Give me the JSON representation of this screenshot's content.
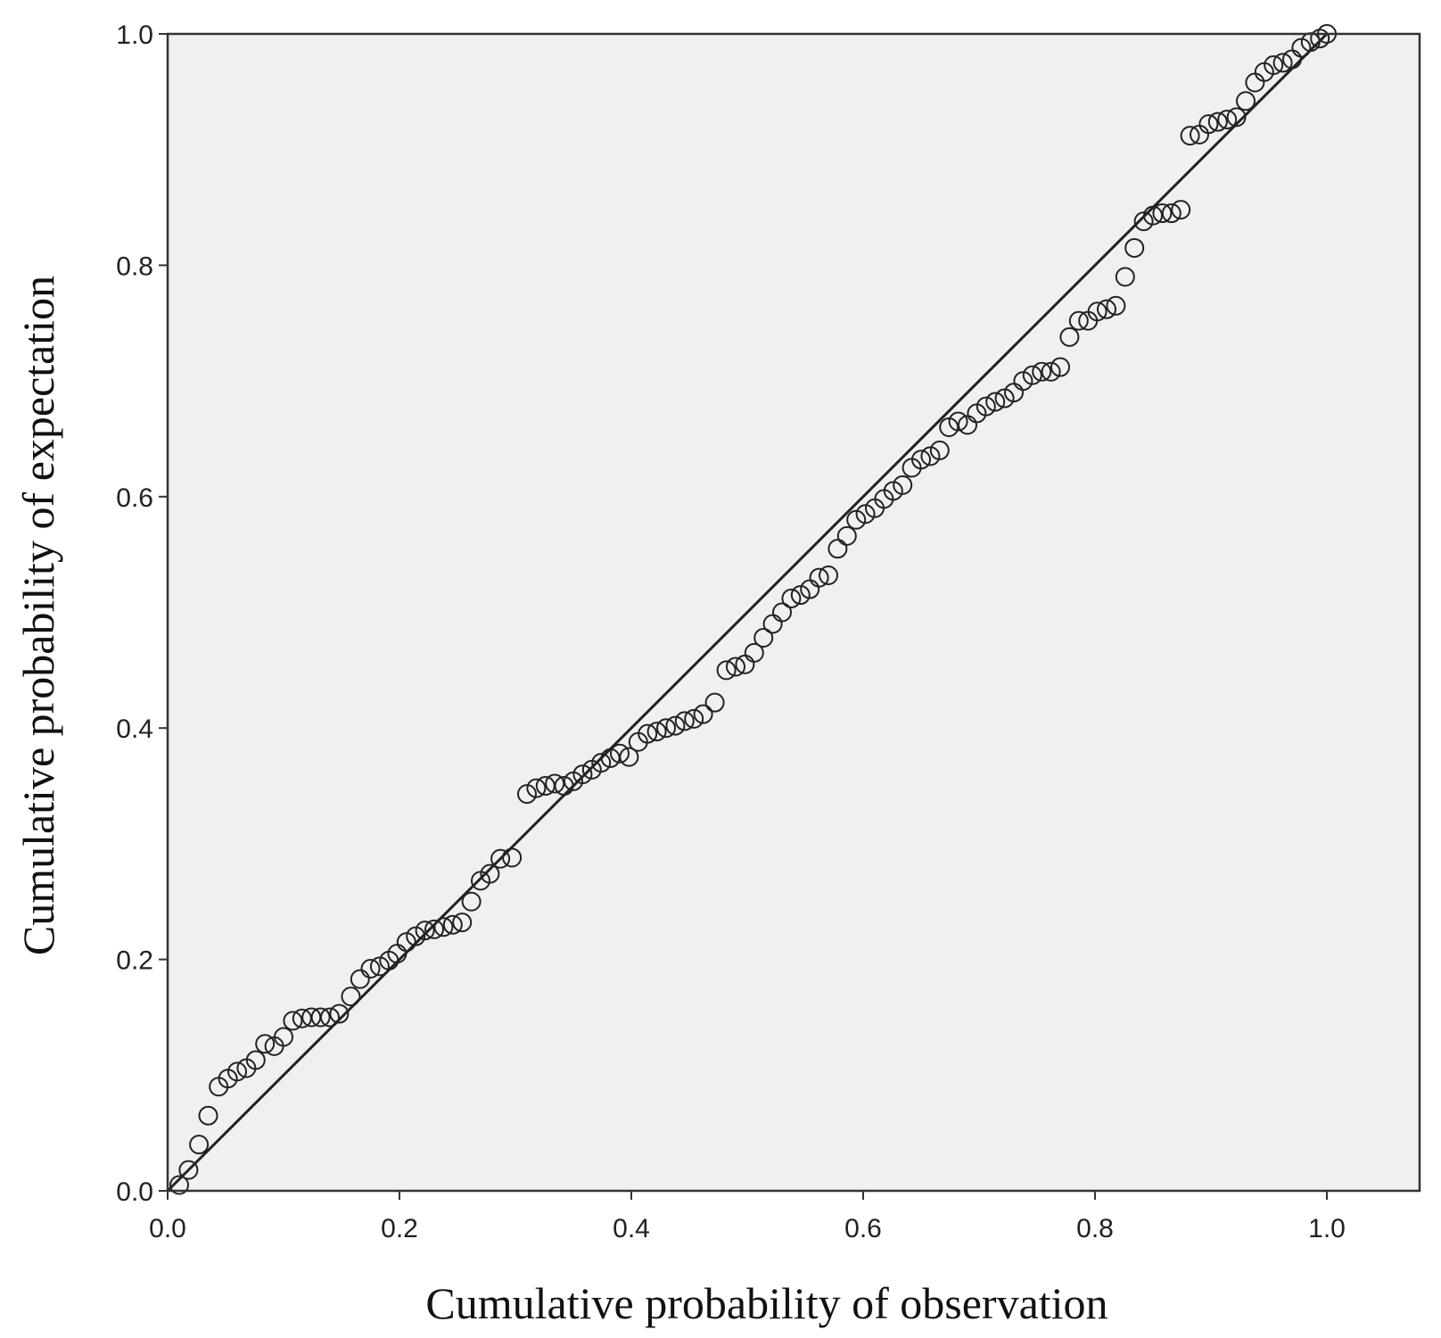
{
  "chart_data": {
    "type": "scatter",
    "xlabel": "Cumulative probability of observation",
    "ylabel": "Cumulative probability of expectation",
    "xlim": [
      0.0,
      1.08
    ],
    "ylim": [
      0.0,
      1.0
    ],
    "x_ticks": [
      "0.0",
      "0.2",
      "0.4",
      "0.6",
      "0.8",
      "1.0"
    ],
    "y_ticks": [
      "0.0",
      "0.2",
      "0.4",
      "0.6",
      "0.8",
      "1.0"
    ],
    "grid": false,
    "plot_background": "#f0f0f0",
    "marker": "open-circle",
    "reference_line": {
      "from": [
        0.0,
        0.0
      ],
      "to": [
        1.0,
        1.0
      ]
    },
    "points": [
      [
        0.01,
        0.005
      ],
      [
        0.018,
        0.018
      ],
      [
        0.027,
        0.04
      ],
      [
        0.035,
        0.065
      ],
      [
        0.044,
        0.09
      ],
      [
        0.052,
        0.097
      ],
      [
        0.06,
        0.103
      ],
      [
        0.068,
        0.106
      ],
      [
        0.076,
        0.113
      ],
      [
        0.084,
        0.127
      ],
      [
        0.092,
        0.125
      ],
      [
        0.1,
        0.133
      ],
      [
        0.108,
        0.147
      ],
      [
        0.116,
        0.149
      ],
      [
        0.124,
        0.15
      ],
      [
        0.132,
        0.15
      ],
      [
        0.14,
        0.15
      ],
      [
        0.148,
        0.153
      ],
      [
        0.158,
        0.168
      ],
      [
        0.166,
        0.183
      ],
      [
        0.175,
        0.192
      ],
      [
        0.183,
        0.194
      ],
      [
        0.191,
        0.199
      ],
      [
        0.198,
        0.205
      ],
      [
        0.206,
        0.215
      ],
      [
        0.214,
        0.22
      ],
      [
        0.222,
        0.225
      ],
      [
        0.23,
        0.226
      ],
      [
        0.238,
        0.228
      ],
      [
        0.246,
        0.23
      ],
      [
        0.254,
        0.232
      ],
      [
        0.262,
        0.25
      ],
      [
        0.27,
        0.268
      ],
      [
        0.278,
        0.274
      ],
      [
        0.287,
        0.287
      ],
      [
        0.297,
        0.288
      ],
      [
        0.31,
        0.343
      ],
      [
        0.318,
        0.348
      ],
      [
        0.326,
        0.35
      ],
      [
        0.334,
        0.352
      ],
      [
        0.342,
        0.35
      ],
      [
        0.35,
        0.354
      ],
      [
        0.358,
        0.36
      ],
      [
        0.366,
        0.364
      ],
      [
        0.374,
        0.37
      ],
      [
        0.382,
        0.374
      ],
      [
        0.39,
        0.378
      ],
      [
        0.398,
        0.375
      ],
      [
        0.406,
        0.388
      ],
      [
        0.414,
        0.395
      ],
      [
        0.422,
        0.397
      ],
      [
        0.43,
        0.4
      ],
      [
        0.438,
        0.402
      ],
      [
        0.446,
        0.406
      ],
      [
        0.454,
        0.408
      ],
      [
        0.462,
        0.412
      ],
      [
        0.472,
        0.422
      ],
      [
        0.482,
        0.45
      ],
      [
        0.49,
        0.453
      ],
      [
        0.498,
        0.455
      ],
      [
        0.506,
        0.465
      ],
      [
        0.514,
        0.478
      ],
      [
        0.522,
        0.49
      ],
      [
        0.53,
        0.5
      ],
      [
        0.538,
        0.512
      ],
      [
        0.546,
        0.515
      ],
      [
        0.554,
        0.52
      ],
      [
        0.562,
        0.53
      ],
      [
        0.57,
        0.532
      ],
      [
        0.578,
        0.555
      ],
      [
        0.586,
        0.566
      ],
      [
        0.594,
        0.58
      ],
      [
        0.602,
        0.585
      ],
      [
        0.61,
        0.59
      ],
      [
        0.618,
        0.598
      ],
      [
        0.626,
        0.605
      ],
      [
        0.634,
        0.61
      ],
      [
        0.642,
        0.625
      ],
      [
        0.65,
        0.632
      ],
      [
        0.658,
        0.635
      ],
      [
        0.666,
        0.64
      ],
      [
        0.674,
        0.66
      ],
      [
        0.682,
        0.665
      ],
      [
        0.69,
        0.662
      ],
      [
        0.698,
        0.672
      ],
      [
        0.706,
        0.678
      ],
      [
        0.714,
        0.682
      ],
      [
        0.722,
        0.685
      ],
      [
        0.73,
        0.69
      ],
      [
        0.738,
        0.7
      ],
      [
        0.746,
        0.705
      ],
      [
        0.754,
        0.708
      ],
      [
        0.762,
        0.708
      ],
      [
        0.77,
        0.712
      ],
      [
        0.778,
        0.738
      ],
      [
        0.786,
        0.752
      ],
      [
        0.794,
        0.752
      ],
      [
        0.802,
        0.76
      ],
      [
        0.81,
        0.762
      ],
      [
        0.818,
        0.765
      ],
      [
        0.826,
        0.79
      ],
      [
        0.834,
        0.815
      ],
      [
        0.842,
        0.838
      ],
      [
        0.85,
        0.843
      ],
      [
        0.858,
        0.845
      ],
      [
        0.866,
        0.845
      ],
      [
        0.874,
        0.848
      ],
      [
        0.882,
        0.912
      ],
      [
        0.89,
        0.913
      ],
      [
        0.898,
        0.922
      ],
      [
        0.906,
        0.924
      ],
      [
        0.914,
        0.926
      ],
      [
        0.922,
        0.928
      ],
      [
        0.93,
        0.942
      ],
      [
        0.938,
        0.958
      ],
      [
        0.946,
        0.967
      ],
      [
        0.954,
        0.973
      ],
      [
        0.962,
        0.975
      ],
      [
        0.97,
        0.978
      ],
      [
        0.978,
        0.988
      ],
      [
        0.986,
        0.993
      ],
      [
        0.994,
        0.996
      ],
      [
        1.0,
        1.0
      ]
    ]
  }
}
